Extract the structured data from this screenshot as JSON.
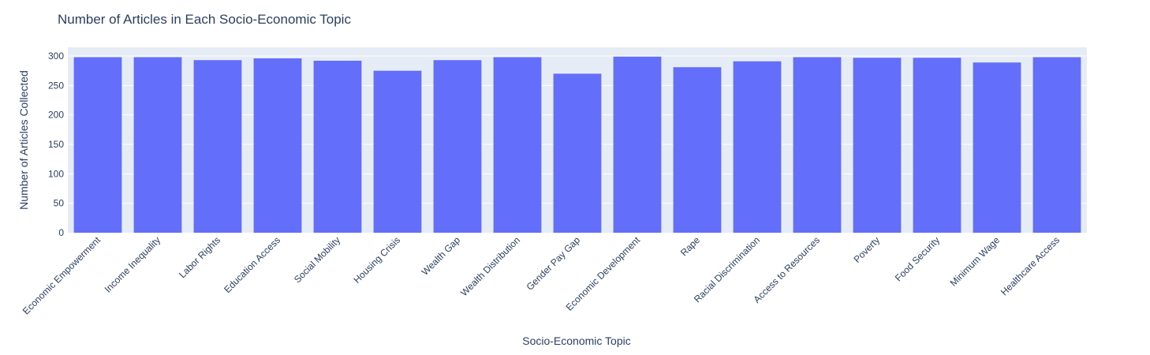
{
  "chart_data": {
    "type": "bar",
    "title": "Number of Articles in Each Socio-Economic Topic",
    "xlabel": "Socio-Economic Topic",
    "ylabel": "Number of Articles Collected",
    "categories": [
      "Economic Empowerment",
      "Income Inequality",
      "Labor Rights",
      "Education Access",
      "Social Mobility",
      "Housing Crisis",
      "Wealth Gap",
      "Wealth Distribution",
      "Gender Pay Gap",
      "Economic Development",
      "Rape",
      "Racial Discrimination",
      "Access to Resources",
      "Poverty",
      "Food Security",
      "Minimum Wage",
      "Healthcare Access"
    ],
    "values": [
      298,
      298,
      293,
      296,
      292,
      275,
      293,
      298,
      270,
      299,
      281,
      291,
      298,
      297,
      297,
      289,
      298
    ],
    "ylim": [
      0,
      300
    ],
    "yticks": [
      0,
      50,
      100,
      150,
      200,
      250,
      300
    ],
    "grid": true,
    "colors": {
      "bar": "#636efa",
      "plot_background": "#e5ecf6",
      "gridline": "#ffffff",
      "text": "#2a3f5f"
    }
  }
}
